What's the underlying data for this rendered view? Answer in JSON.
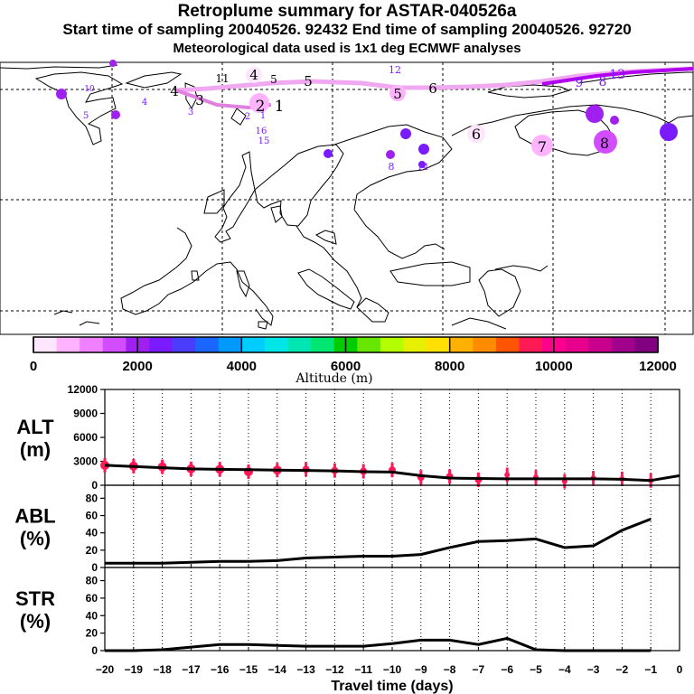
{
  "header": {
    "title": "Retroplume summary for ASTAR-040526a",
    "sampling_line": "Start time of sampling 20040526. 92432     End time of sampling 20040526. 92720",
    "met_line": "Meteorological data used is 1x1 deg ECMWF analyses"
  },
  "colorbar": {
    "colors": [
      "#ffe6ff",
      "#ffb3ff",
      "#f080ff",
      "#d24dff",
      "#a020f0",
      "#7a1aff",
      "#4a3dff",
      "#1a66ff",
      "#0099ff",
      "#00ccff",
      "#00e6e6",
      "#00e6b3",
      "#00e673",
      "#00cc00",
      "#66e600",
      "#b3ff00",
      "#e6f000",
      "#ffe000",
      "#ffb000",
      "#ff8c00",
      "#ff5500",
      "#ff1a55",
      "#ff008c",
      "#e6008c",
      "#c8008c",
      "#a0008c",
      "#800080"
    ],
    "tick_labels": [
      "0",
      "2000",
      "4000",
      "6000",
      "8000",
      "10000",
      "12000"
    ],
    "axis_label": "Altitude (m)"
  },
  "map": {
    "plume_labels": [
      {
        "t": "4",
        "a": 2000
      },
      {
        "t": "5",
        "a": 2000
      },
      {
        "t": "5",
        "a": 1200
      },
      {
        "t": "6",
        "a": 1200
      },
      {
        "t": "4",
        "a": 2000
      },
      {
        "t": "3",
        "a": 2000
      },
      {
        "t": "2",
        "a": 1200
      },
      {
        "t": "1",
        "a": 1200
      },
      {
        "t": "11",
        "a": 2000
      },
      {
        "t": "5",
        "a": 2000
      },
      {
        "t": "6",
        "a": 500
      },
      {
        "t": "7",
        "a": 1000
      },
      {
        "t": "8",
        "a": 1300
      },
      {
        "t": "10",
        "a": 2200
      },
      {
        "t": "9",
        "a": 2400
      },
      {
        "t": "12",
        "a": 2400
      },
      {
        "t": "13",
        "a": 2400
      },
      {
        "t": "15",
        "a": 2400
      },
      {
        "t": "16",
        "a": 2400
      },
      {
        "t": "6",
        "a": 2400
      },
      {
        "t": "9",
        "a": 2400
      },
      {
        "t": "8",
        "a": 2400
      },
      {
        "t": "10",
        "a": 2400
      },
      {
        "t": "14",
        "a": 2400
      },
      {
        "t": "8",
        "a": 2400
      },
      {
        "t": "3",
        "a": 2400
      },
      {
        "t": "2",
        "a": 2400
      },
      {
        "t": "1",
        "a": 2400
      },
      {
        "t": "4",
        "a": 2400
      },
      {
        "t": "5",
        "a": 2400
      },
      {
        "t": "9",
        "a": 2400
      }
    ]
  },
  "chart_data": [
    {
      "type": "line",
      "title": "ALT (m)",
      "panel_label": [
        "ALT",
        "(m)"
      ],
      "x": [
        -20,
        -19,
        -18,
        -17,
        -16,
        -15,
        -14,
        -13,
        -12,
        -11,
        -10,
        -9,
        -8,
        -7,
        -6,
        -5,
        -4,
        -3,
        -2,
        -1,
        0
      ],
      "series": [
        {
          "name": "mean altitude",
          "values": [
            2500,
            2350,
            2200,
            2050,
            2000,
            1950,
            1900,
            1850,
            1800,
            1700,
            1650,
            1200,
            900,
            850,
            800,
            800,
            800,
            800,
            750,
            600,
            1200
          ]
        }
      ],
      "scatter_series": [
        {
          "name": "plume fraction altitudes",
          "points": [
            [
              -20,
              2500
            ],
            [
              -19,
              2400
            ],
            [
              -18,
              2300
            ],
            [
              -17,
              2050
            ],
            [
              -16,
              2000
            ],
            [
              -15,
              1700
            ],
            [
              -14,
              1900
            ],
            [
              -13,
              2000
            ],
            [
              -12,
              1850
            ],
            [
              -11,
              1750
            ],
            [
              -10,
              1900
            ],
            [
              -9,
              1000
            ],
            [
              -8,
              1100
            ],
            [
              -7,
              700
            ],
            [
              -6,
              1300
            ],
            [
              -5,
              1000
            ],
            [
              -4,
              500
            ],
            [
              -3,
              900
            ],
            [
              -2,
              800
            ],
            [
              -1,
              600
            ]
          ]
        }
      ],
      "ylim": [
        0,
        12000
      ],
      "yticks": [
        0,
        3000,
        6000,
        9000,
        12000
      ]
    },
    {
      "type": "line",
      "title": "ABL (%)",
      "panel_label": [
        "ABL",
        "(%)"
      ],
      "x": [
        -20,
        -19,
        -18,
        -17,
        -16,
        -15,
        -14,
        -13,
        -12,
        -11,
        -10,
        -9,
        -8,
        -7,
        -6,
        -5,
        -4,
        -3,
        -2,
        -1
      ],
      "series": [
        {
          "name": "ABL fraction",
          "values": [
            5,
            5,
            5,
            6,
            7,
            7,
            8,
            11,
            12,
            13,
            13,
            15,
            23,
            30,
            31,
            33,
            23,
            25,
            43,
            56
          ]
        }
      ],
      "ylim": [
        0,
        95
      ],
      "yticks": [
        0,
        20,
        40,
        60,
        80
      ]
    },
    {
      "type": "line",
      "title": "STR (%)",
      "panel_label": [
        "STR",
        "(%)"
      ],
      "x": [
        -20,
        -19,
        -18,
        -17,
        -16,
        -15,
        -14,
        -13,
        -12,
        -11,
        -10,
        -9,
        -8,
        -7,
        -6,
        -5,
        -4,
        -3,
        -2,
        -1
      ],
      "series": [
        {
          "name": "stratospheric fraction",
          "values": [
            0,
            0,
            1,
            4,
            7,
            7,
            6,
            5,
            5,
            5,
            8,
            12,
            12,
            7,
            14,
            1,
            0,
            0,
            0,
            0
          ]
        }
      ],
      "ylim": [
        0,
        95
      ],
      "yticks": [
        0,
        20,
        40,
        60,
        80
      ],
      "xlabel": "Travel time (days)",
      "xtick_labels": [
        "−20",
        "−19",
        "−18",
        "−17",
        "−16",
        "−15",
        "−14",
        "−13",
        "−12",
        "−11",
        "−10",
        "−9",
        "−8",
        "−7",
        "−6",
        "−5",
        "−4",
        "−3",
        "−2",
        "−1",
        "0"
      ]
    }
  ]
}
